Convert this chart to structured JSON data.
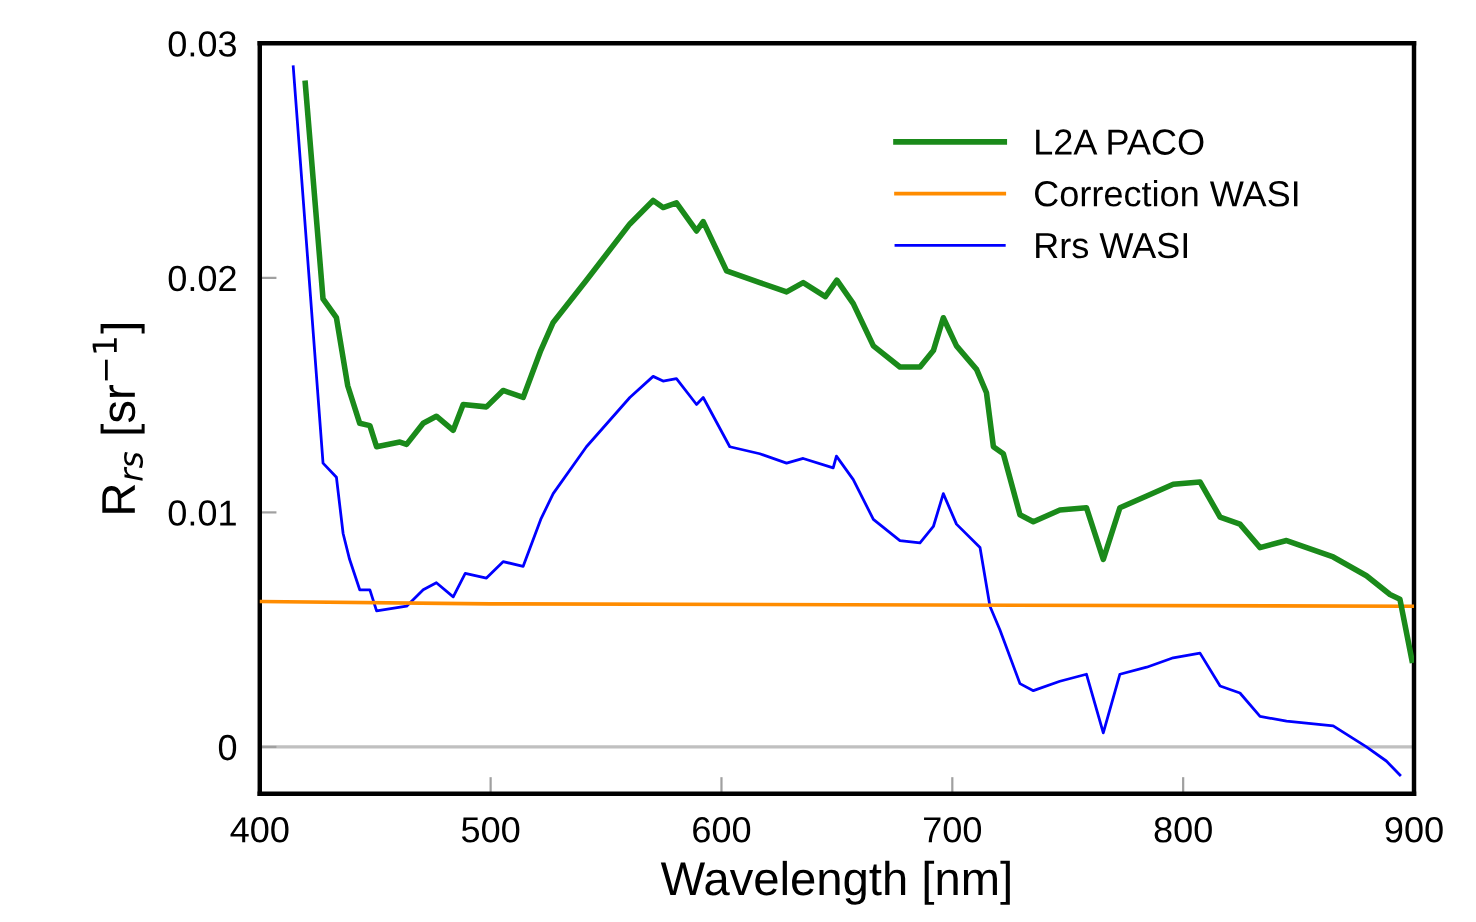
{
  "chart_data": {
    "type": "line",
    "xlabel": "Wavelength [nm]",
    "ylabel": "R$_{rs}$ [sr$^{−1}$]",
    "xlim": [
      400,
      900
    ],
    "xticks": [
      400,
      500,
      600,
      700,
      800,
      900
    ],
    "ylim": [
      -0.002,
      0.03
    ],
    "yticks": [
      0,
      0.01,
      0.02,
      0.03
    ],
    "grid": false,
    "legend": "top right",
    "line_style": "solid",
    "marker": "none",
    "ref_lines": [
      {
        "axis": "y",
        "value": 0,
        "color": "#c0c0c0"
      }
    ],
    "series": [
      {
        "name": "L2A PACO",
        "color": "#1a8a1a",
        "x": [
          419.7,
          427.4,
          433.2,
          438.1,
          443.3,
          447.7,
          450.6,
          460.7,
          463.6,
          470.8,
          476.5,
          483.8,
          488.1,
          498.2,
          505.4,
          514.1,
          521.7,
          527.1,
          541.5,
          560.3,
          570.4,
          574.7,
          580.5,
          589.2,
          592.1,
          602.2,
          616.6,
          628.2,
          635.4,
          645.0,
          650.0,
          657.1,
          665.8,
          677.3,
          686.0,
          691.8,
          696.1,
          701.8,
          710.5,
          714.8,
          717.8,
          722.1,
          729.3,
          735.1,
          746.6,
          758.1,
          765.4,
          772.6,
          784.2,
          795.7,
          807.3,
          816.0,
          824.6,
          833.3,
          844.8,
          865.0,
          879.4,
          889.6,
          893.9,
          899.1
        ],
        "values": [
          0.0283,
          0.0191,
          0.0183,
          0.0154,
          0.0138,
          0.0137,
          0.0128,
          0.013,
          0.0129,
          0.0138,
          0.0141,
          0.0135,
          0.0146,
          0.0145,
          0.0152,
          0.0149,
          0.0169,
          0.0181,
          0.0199,
          0.0223,
          0.0233,
          0.023,
          0.0232,
          0.022,
          0.0224,
          0.0203,
          0.0198,
          0.0194,
          0.0198,
          0.0192,
          0.0199,
          0.0189,
          0.0171,
          0.0162,
          0.0162,
          0.0169,
          0.0183,
          0.0171,
          0.0161,
          0.0151,
          0.0128,
          0.0125,
          0.0099,
          0.0096,
          0.0101,
          0.0102,
          0.008,
          0.0102,
          0.0107,
          0.0112,
          0.0113,
          0.0098,
          0.0095,
          0.0085,
          0.0088,
          0.0081,
          0.0073,
          0.0065,
          0.0063,
          0.0037
        ]
      },
      {
        "name": "Correction WASI",
        "color": "#ff8c00",
        "x": [
          400,
          500,
          900
        ],
        "values": [
          0.0062,
          0.0061,
          0.006
        ]
      },
      {
        "name": "Rrs WASI",
        "color": "#0000ff",
        "x": [
          414.5,
          427.4,
          433.2,
          436.1,
          438.9,
          443.3,
          447.7,
          450.6,
          463.6,
          470.8,
          476.5,
          483.8,
          489.0,
          498.2,
          505.4,
          514.1,
          521.7,
          527.1,
          541.5,
          560.3,
          570.4,
          574.7,
          580.5,
          589.2,
          592.1,
          603.6,
          616.6,
          628.2,
          635.4,
          648.4,
          649.8,
          657.1,
          665.8,
          677.3,
          686.0,
          691.8,
          696.1,
          701.8,
          712.0,
          716.3,
          720.6,
          729.3,
          735.1,
          746.6,
          758.1,
          765.4,
          772.6,
          784.2,
          795.7,
          807.3,
          816.0,
          824.6,
          833.3,
          844.8,
          865.0,
          879.4,
          888.0,
          893.9
        ],
        "values": [
          0.029,
          0.0121,
          0.0115,
          0.0091,
          0.008,
          0.0067,
          0.0067,
          0.0058,
          0.006,
          0.0067,
          0.007,
          0.0064,
          0.0074,
          0.0072,
          0.0079,
          0.0077,
          0.0097,
          0.0108,
          0.0128,
          0.0149,
          0.0158,
          0.0156,
          0.0157,
          0.0146,
          0.0149,
          0.0128,
          0.0125,
          0.0121,
          0.0123,
          0.0119,
          0.0124,
          0.0114,
          0.0097,
          0.0088,
          0.0087,
          0.0094,
          0.0108,
          0.0095,
          0.0085,
          0.006,
          0.005,
          0.0027,
          0.0024,
          0.0028,
          0.0031,
          0.0006,
          0.0031,
          0.0034,
          0.0038,
          0.004,
          0.0026,
          0.0023,
          0.0013,
          0.0011,
          0.0009,
          0.0,
          -0.0006,
          -0.0012
        ]
      }
    ]
  }
}
